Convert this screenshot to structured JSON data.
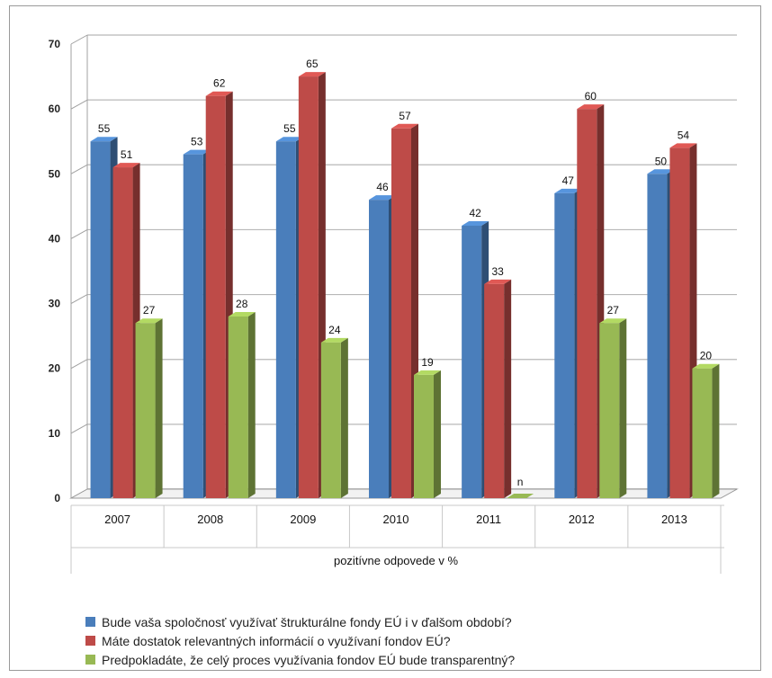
{
  "chart_data": {
    "type": "bar",
    "categories": [
      "2007",
      "2008",
      "2009",
      "2010",
      "2011",
      "2012",
      "2013"
    ],
    "series": [
      {
        "name": "Bude vaša spoločnosť využívať štrukturálne fondy EÚ i v ďalšom období?",
        "color": "#4A7EBB",
        "values": [
          55,
          53,
          55,
          46,
          42,
          47,
          50
        ]
      },
      {
        "name": "Máte dostatok relevantných informácií o využívaní fondov EÚ?",
        "color": "#BE4B48",
        "values": [
          51,
          62,
          65,
          57,
          33,
          60,
          54
        ]
      },
      {
        "name": "Predpokladáte, že celý proces využívania fondov EÚ bude transparentný?",
        "color": "#98B954",
        "values": [
          27,
          28,
          24,
          19,
          null,
          27,
          20
        ]
      }
    ],
    "value_labels": [
      [
        "55",
        "53",
        "55",
        "46",
        "42",
        "47",
        "50"
      ],
      [
        "51",
        "62",
        "65",
        "57",
        "33",
        "60",
        "54"
      ],
      [
        "27",
        "28",
        "24",
        "19",
        "n",
        "27",
        "20"
      ]
    ],
    "yticks": [
      "0",
      "10",
      "20",
      "30",
      "40",
      "50",
      "60",
      "70"
    ],
    "ylim": [
      0,
      70
    ],
    "xlabel": "pozitívne odpovede v %",
    "ylabel": "",
    "title": "",
    "grid": true,
    "legend_position": "bottom"
  }
}
